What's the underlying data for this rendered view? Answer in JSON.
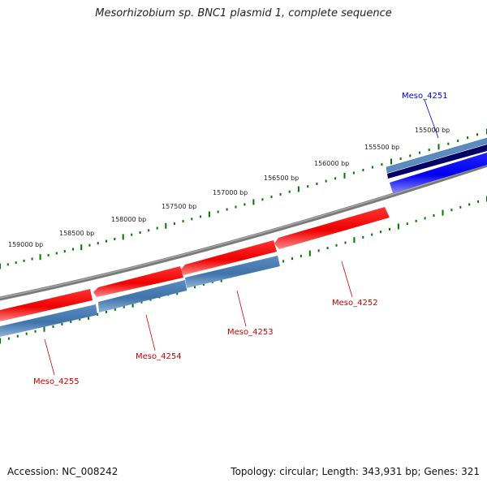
{
  "title": "Mesorhizobium sp. BNC1 plasmid 1, complete sequence",
  "accession": "Accession: NC_008242",
  "summary": "Topology: circular; Length: 343,931 bp; Genes: 321",
  "scale": {
    "labels": [
      "155000 bp",
      "155500 bp",
      "156000 bp",
      "156500 bp",
      "157000 bp",
      "157500 bp",
      "158000 bp",
      "158500 bp",
      "159000 bp"
    ]
  },
  "genes": [
    {
      "name": "Meso_4251",
      "color": "#0000cc"
    },
    {
      "name": "Meso_4252",
      "color": "#cc0000"
    },
    {
      "name": "Meso_4253",
      "color": "#cc0000"
    },
    {
      "name": "Meso_4254",
      "color": "#cc0000"
    },
    {
      "name": "Meso_4255",
      "color": "#cc0000"
    }
  ],
  "colors": {
    "backbone": "#808080",
    "tick": "#007700",
    "forward_feature": "#ff0000",
    "reverse_feature": "#4a7fb5",
    "blue_feature": "#0000ff",
    "navy_feature": "#000066"
  }
}
